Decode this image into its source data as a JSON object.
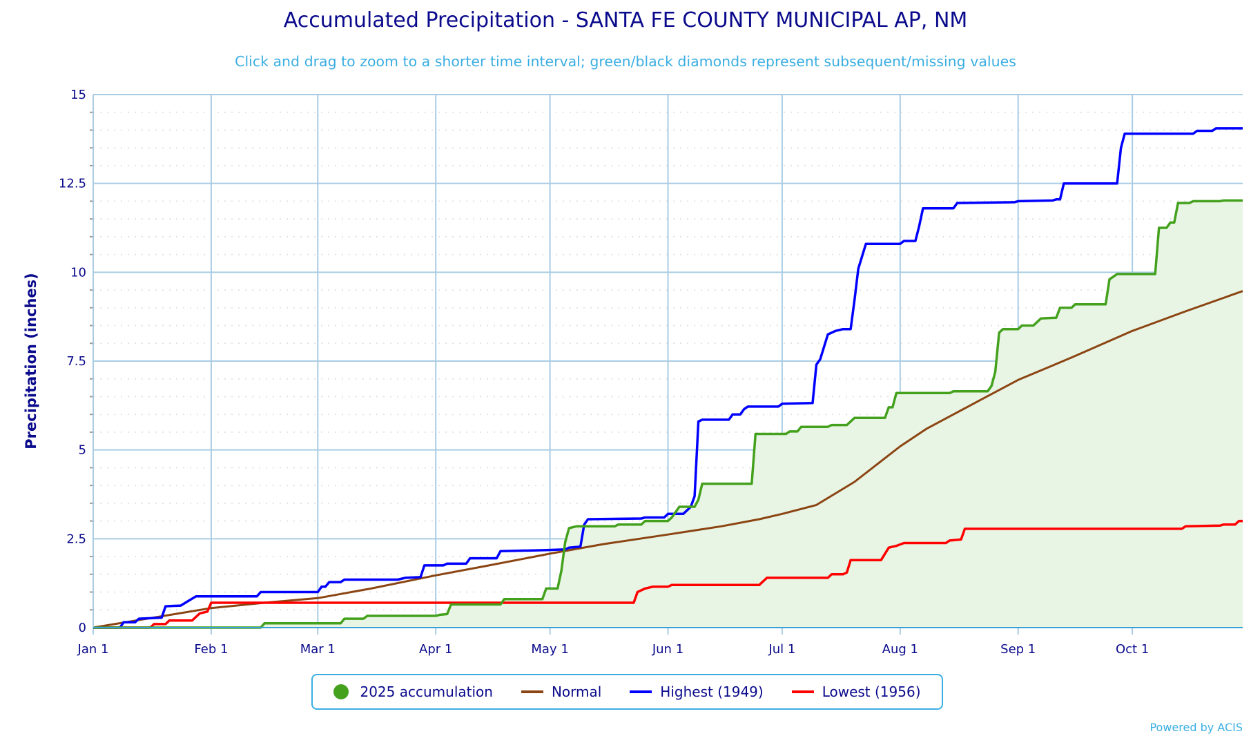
{
  "title": "Accumulated Precipitation - SANTA FE COUNTY MUNICIPAL AP, NM",
  "subtitle": "Click and drag to zoom to a shorter time interval; green/black diamonds represent subsequent/missing values",
  "powered_by": "Powered by ACIS",
  "chart_data": {
    "type": "line",
    "ylabel": "Precipitation (inches)",
    "xlabel": "",
    "ylim": [
      0,
      15
    ],
    "xlim": [
      "01-01",
      "10-30"
    ],
    "yticks": [
      "0",
      "2.5",
      "5",
      "7.5",
      "10",
      "12.5",
      "15"
    ],
    "xticks": [
      {
        "label": "Jan 1",
        "date": "01-01"
      },
      {
        "label": "Feb 1",
        "date": "02-01"
      },
      {
        "label": "Mar 1",
        "date": "03-01"
      },
      {
        "label": "Apr 1",
        "date": "04-01"
      },
      {
        "label": "May 1",
        "date": "05-01"
      },
      {
        "label": "Jun 1",
        "date": "06-01"
      },
      {
        "label": "Jul 1",
        "date": "07-01"
      },
      {
        "label": "Aug 1",
        "date": "08-01"
      },
      {
        "label": "Sep 1",
        "date": "09-01"
      },
      {
        "label": "Oct 1",
        "date": "10-01"
      }
    ],
    "grid": true,
    "legend": "bottom",
    "series": [
      {
        "name": "2025 accumulation",
        "color": "#43a11d",
        "fill": "#e9f5e4",
        "marker": "circle",
        "points": [
          [
            "01-01",
            0
          ],
          [
            "02-14",
            0
          ],
          [
            "02-15",
            0.12
          ],
          [
            "03-07",
            0.12
          ],
          [
            "03-08",
            0.25
          ],
          [
            "03-13",
            0.25
          ],
          [
            "03-14",
            0.33
          ],
          [
            "04-01",
            0.33
          ],
          [
            "04-02",
            0.36
          ],
          [
            "04-04",
            0.38
          ],
          [
            "04-05",
            0.65
          ],
          [
            "04-18",
            0.65
          ],
          [
            "04-19",
            0.8
          ],
          [
            "04-29",
            0.8
          ],
          [
            "04-30",
            1.1
          ],
          [
            "05-03",
            1.1
          ],
          [
            "05-04",
            1.6
          ],
          [
            "05-05",
            2.4
          ],
          [
            "05-06",
            2.8
          ],
          [
            "05-08",
            2.85
          ],
          [
            "05-18",
            2.85
          ],
          [
            "05-19",
            2.9
          ],
          [
            "05-25",
            2.9
          ],
          [
            "05-26",
            3.0
          ],
          [
            "06-01",
            3.0
          ],
          [
            "06-02",
            3.1
          ],
          [
            "06-04",
            3.4
          ],
          [
            "06-08",
            3.4
          ],
          [
            "06-09",
            3.6
          ],
          [
            "06-10",
            4.05
          ],
          [
            "06-23",
            4.05
          ],
          [
            "06-24",
            5.45
          ],
          [
            "07-02",
            5.45
          ],
          [
            "07-03",
            5.52
          ],
          [
            "07-05",
            5.52
          ],
          [
            "07-06",
            5.65
          ],
          [
            "07-13",
            5.65
          ],
          [
            "07-14",
            5.7
          ],
          [
            "07-18",
            5.7
          ],
          [
            "07-20",
            5.9
          ],
          [
            "07-28",
            5.9
          ],
          [
            "07-29",
            6.2
          ],
          [
            "07-30",
            6.2
          ],
          [
            "07-31",
            6.6
          ],
          [
            "08-14",
            6.6
          ],
          [
            "08-15",
            6.65
          ],
          [
            "08-24",
            6.65
          ],
          [
            "08-25",
            6.8
          ],
          [
            "08-26",
            7.2
          ],
          [
            "08-27",
            8.3
          ],
          [
            "08-28",
            8.4
          ],
          [
            "09-01",
            8.4
          ],
          [
            "09-02",
            8.5
          ],
          [
            "09-05",
            8.5
          ],
          [
            "09-07",
            8.7
          ],
          [
            "09-11",
            8.72
          ],
          [
            "09-12",
            9.0
          ],
          [
            "09-15",
            9.0
          ],
          [
            "09-16",
            9.1
          ],
          [
            "09-24",
            9.1
          ],
          [
            "09-25",
            9.8
          ],
          [
            "09-27",
            9.95
          ],
          [
            "10-07",
            9.95
          ],
          [
            "10-08",
            11.25
          ],
          [
            "10-10",
            11.25
          ],
          [
            "10-11",
            11.4
          ],
          [
            "10-12",
            11.4
          ],
          [
            "10-13",
            11.95
          ],
          [
            "10-16",
            11.95
          ],
          [
            "10-17",
            12.0
          ],
          [
            "10-24",
            12.0
          ],
          [
            "10-25",
            12.02
          ],
          [
            "10-30",
            12.02
          ]
        ]
      },
      {
        "name": "Normal",
        "color": "#8b4513",
        "points": [
          [
            "01-01",
            0
          ],
          [
            "02-01",
            0.55
          ],
          [
            "02-15",
            0.7
          ],
          [
            "03-01",
            0.83
          ],
          [
            "03-15",
            1.1
          ],
          [
            "04-01",
            1.47
          ],
          [
            "04-15",
            1.75
          ],
          [
            "05-01",
            2.08
          ],
          [
            "05-15",
            2.35
          ],
          [
            "06-01",
            2.62
          ],
          [
            "06-15",
            2.85
          ],
          [
            "06-25",
            3.05
          ],
          [
            "07-01",
            3.2
          ],
          [
            "07-10",
            3.45
          ],
          [
            "07-20",
            4.1
          ],
          [
            "08-01",
            5.1
          ],
          [
            "08-08",
            5.6
          ],
          [
            "08-15",
            6.0
          ],
          [
            "08-22",
            6.4
          ],
          [
            "09-01",
            6.97
          ],
          [
            "09-15",
            7.6
          ],
          [
            "10-01",
            8.35
          ],
          [
            "10-15",
            8.9
          ],
          [
            "10-30",
            9.47
          ]
        ]
      },
      {
        "name": "Highest (1949)",
        "color": "#0000ff",
        "points": [
          [
            "01-01",
            0
          ],
          [
            "01-08",
            0
          ],
          [
            "01-09",
            0.15
          ],
          [
            "01-12",
            0.15
          ],
          [
            "01-13",
            0.25
          ],
          [
            "01-19",
            0.28
          ],
          [
            "01-20",
            0.6
          ],
          [
            "01-24",
            0.62
          ],
          [
            "01-26",
            0.75
          ],
          [
            "01-28",
            0.88
          ],
          [
            "02-13",
            0.88
          ],
          [
            "02-14",
            1.0
          ],
          [
            "03-01",
            1.0
          ],
          [
            "03-02",
            1.15
          ],
          [
            "03-03",
            1.15
          ],
          [
            "03-04",
            1.28
          ],
          [
            "03-07",
            1.28
          ],
          [
            "03-08",
            1.35
          ],
          [
            "03-22",
            1.35
          ],
          [
            "03-24",
            1.4
          ],
          [
            "03-28",
            1.42
          ],
          [
            "03-29",
            1.75
          ],
          [
            "04-03",
            1.75
          ],
          [
            "04-04",
            1.8
          ],
          [
            "04-09",
            1.8
          ],
          [
            "04-10",
            1.95
          ],
          [
            "04-17",
            1.95
          ],
          [
            "04-18",
            2.15
          ],
          [
            "04-30",
            2.18
          ],
          [
            "05-05",
            2.2
          ],
          [
            "05-06",
            2.25
          ],
          [
            "05-09",
            2.28
          ],
          [
            "05-10",
            2.9
          ],
          [
            "05-11",
            3.05
          ],
          [
            "05-25",
            3.07
          ],
          [
            "05-26",
            3.1
          ],
          [
            "05-31",
            3.1
          ],
          [
            "06-01",
            3.2
          ],
          [
            "06-05",
            3.2
          ],
          [
            "06-06",
            3.3
          ],
          [
            "06-07",
            3.4
          ],
          [
            "06-08",
            3.7
          ],
          [
            "06-09",
            5.8
          ],
          [
            "06-10",
            5.85
          ],
          [
            "06-17",
            5.85
          ],
          [
            "06-18",
            6.0
          ],
          [
            "06-20",
            6.0
          ],
          [
            "06-21",
            6.15
          ],
          [
            "06-22",
            6.22
          ],
          [
            "06-30",
            6.22
          ],
          [
            "07-01",
            6.3
          ],
          [
            "07-09",
            6.32
          ],
          [
            "07-10",
            7.4
          ],
          [
            "07-11",
            7.55
          ],
          [
            "07-13",
            8.25
          ],
          [
            "07-15",
            8.35
          ],
          [
            "07-17",
            8.4
          ],
          [
            "07-19",
            8.4
          ],
          [
            "07-20",
            9.2
          ],
          [
            "07-21",
            10.1
          ],
          [
            "07-23",
            10.8
          ],
          [
            "08-01",
            10.8
          ],
          [
            "08-02",
            10.88
          ],
          [
            "08-05",
            10.88
          ],
          [
            "08-06",
            11.3
          ],
          [
            "08-07",
            11.8
          ],
          [
            "08-15",
            11.8
          ],
          [
            "08-16",
            11.95
          ],
          [
            "08-31",
            11.97
          ],
          [
            "09-01",
            12.0
          ],
          [
            "09-10",
            12.02
          ],
          [
            "09-11",
            12.05
          ],
          [
            "09-12",
            12.05
          ],
          [
            "09-13",
            12.5
          ],
          [
            "09-27",
            12.5
          ],
          [
            "09-28",
            13.5
          ],
          [
            "09-29",
            13.9
          ],
          [
            "10-17",
            13.9
          ],
          [
            "10-18",
            13.98
          ],
          [
            "10-22",
            13.98
          ],
          [
            "10-23",
            14.05
          ],
          [
            "10-30",
            14.05
          ]
        ]
      },
      {
        "name": "Lowest (1956)",
        "color": "#ff0000",
        "points": [
          [
            "01-01",
            0
          ],
          [
            "01-16",
            0
          ],
          [
            "01-17",
            0.1
          ],
          [
            "01-20",
            0.1
          ],
          [
            "01-21",
            0.2
          ],
          [
            "01-27",
            0.2
          ],
          [
            "01-29",
            0.4
          ],
          [
            "01-31",
            0.45
          ],
          [
            "02-01",
            0.7
          ],
          [
            "05-23",
            0.7
          ],
          [
            "05-24",
            1.0
          ],
          [
            "05-26",
            1.1
          ],
          [
            "05-28",
            1.15
          ],
          [
            "06-01",
            1.15
          ],
          [
            "06-02",
            1.2
          ],
          [
            "06-25",
            1.2
          ],
          [
            "06-27",
            1.4
          ],
          [
            "07-13",
            1.4
          ],
          [
            "07-14",
            1.5
          ],
          [
            "07-17",
            1.5
          ],
          [
            "07-18",
            1.55
          ],
          [
            "07-19",
            1.9
          ],
          [
            "07-27",
            1.9
          ],
          [
            "07-29",
            2.25
          ],
          [
            "07-31",
            2.3
          ],
          [
            "08-02",
            2.38
          ],
          [
            "08-13",
            2.38
          ],
          [
            "08-14",
            2.45
          ],
          [
            "08-17",
            2.48
          ],
          [
            "08-18",
            2.78
          ],
          [
            "10-14",
            2.78
          ],
          [
            "10-15",
            2.85
          ],
          [
            "10-24",
            2.87
          ],
          [
            "10-25",
            2.9
          ],
          [
            "10-28",
            2.9
          ],
          [
            "10-29",
            3.0
          ],
          [
            "10-30",
            3.0
          ]
        ]
      }
    ]
  }
}
